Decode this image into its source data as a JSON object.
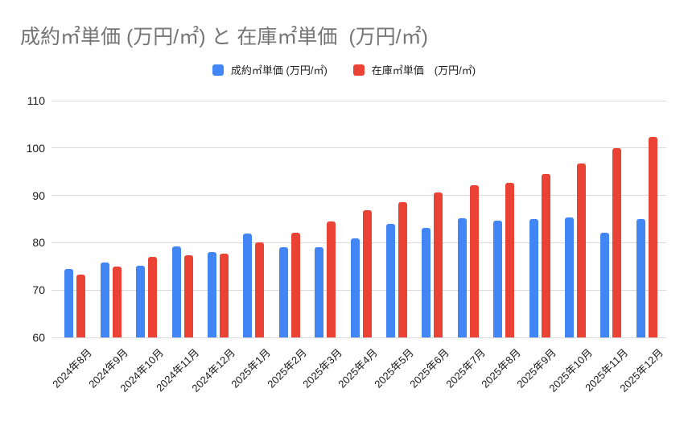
{
  "title": "成約㎡単価 (万円/㎡) と 在庫㎡単価  (万円/㎡)",
  "chart_data": {
    "type": "bar",
    "title": "成約㎡単価 (万円/㎡) と 在庫㎡単価  (万円/㎡)",
    "xlabel": "",
    "ylabel": "",
    "ylim": [
      60,
      110
    ],
    "yticks": [
      60,
      70,
      80,
      90,
      100,
      110
    ],
    "grid": true,
    "legend_position": "top",
    "categories": [
      "2024年8月",
      "2024年9月",
      "2024年10月",
      "2024年11月",
      "2024年12月",
      "2025年1月",
      "2025年2月",
      "2025年3月",
      "2025年4月",
      "2025年5月",
      "2025年6月",
      "2025年7月",
      "2025年8月",
      "2025年9月",
      "2025年10月",
      "2025年11月",
      "2025年12月"
    ],
    "series": [
      {
        "name": "成約㎡単価 (万円/㎡)",
        "color": "#4285F4",
        "values": [
          74.5,
          75.8,
          75.1,
          79.3,
          78.0,
          81.9,
          79.0,
          79.0,
          80.9,
          84.0,
          83.2,
          85.2,
          84.7,
          85.0,
          85.3,
          82.1,
          85.0
        ]
      },
      {
        "name": "在庫㎡単価　(万円/㎡)",
        "color": "#EA4335",
        "values": [
          73.3,
          74.9,
          77.0,
          77.3,
          77.7,
          80.0,
          82.1,
          84.5,
          86.9,
          88.6,
          90.6,
          92.1,
          92.7,
          94.6,
          96.7,
          100.0,
          102.4
        ]
      }
    ]
  }
}
